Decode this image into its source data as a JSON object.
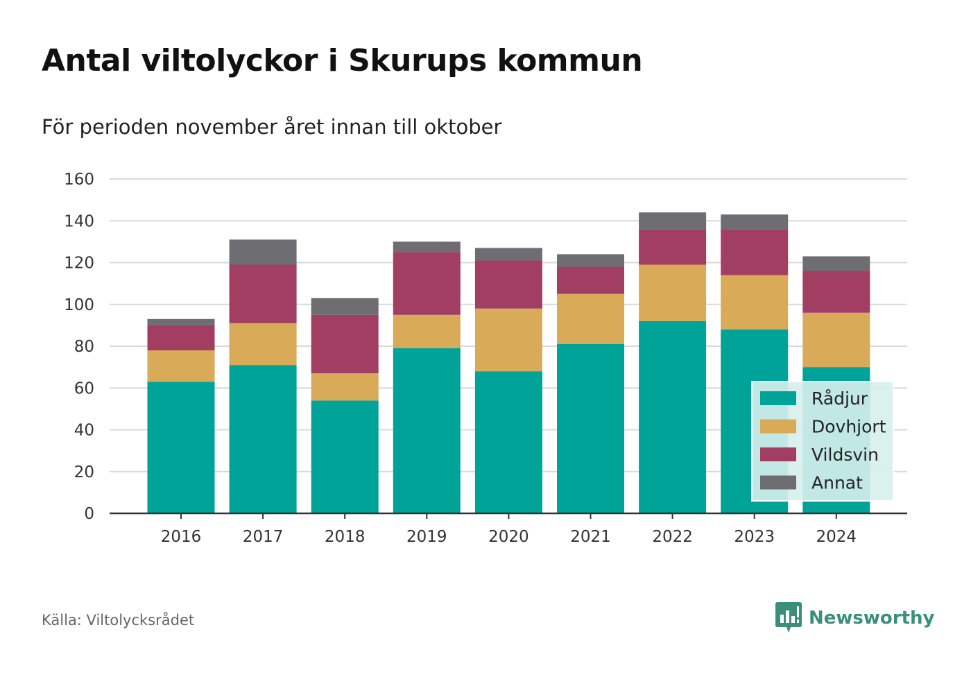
{
  "header": {
    "title": "Antal viltolyckor i Skurups kommun",
    "subtitle": "För perioden november året innan till oktober"
  },
  "footer": {
    "source": "Källa: Viltolycksrådet",
    "brand": "Newsworthy",
    "brand_icon": "newsworthy-logo-icon",
    "brand_color": "#3a8f7c"
  },
  "chart_data": {
    "type": "bar",
    "stacked": true,
    "categories": [
      "2016",
      "2017",
      "2018",
      "2019",
      "2020",
      "2021",
      "2022",
      "2023",
      "2024"
    ],
    "series": [
      {
        "name": "Rådjur",
        "color": "#00a398",
        "values": [
          63,
          71,
          54,
          79,
          68,
          81,
          92,
          88,
          70
        ]
      },
      {
        "name": "Dovhjort",
        "color": "#d9aa57",
        "values": [
          15,
          20,
          13,
          16,
          30,
          24,
          27,
          26,
          26
        ]
      },
      {
        "name": "Vildsvin",
        "color": "#a23e62",
        "values": [
          12,
          28,
          28,
          30,
          23,
          13,
          17,
          22,
          20
        ]
      },
      {
        "name": "Annat",
        "color": "#6e6d72",
        "values": [
          3,
          12,
          8,
          5,
          6,
          6,
          8,
          7,
          7
        ]
      }
    ],
    "yticks": [
      "0",
      "20",
      "40",
      "60",
      "80",
      "100",
      "120",
      "140",
      "160"
    ],
    "ylim": [
      0,
      160
    ],
    "grid": true,
    "legend_position": "bottom-right"
  }
}
